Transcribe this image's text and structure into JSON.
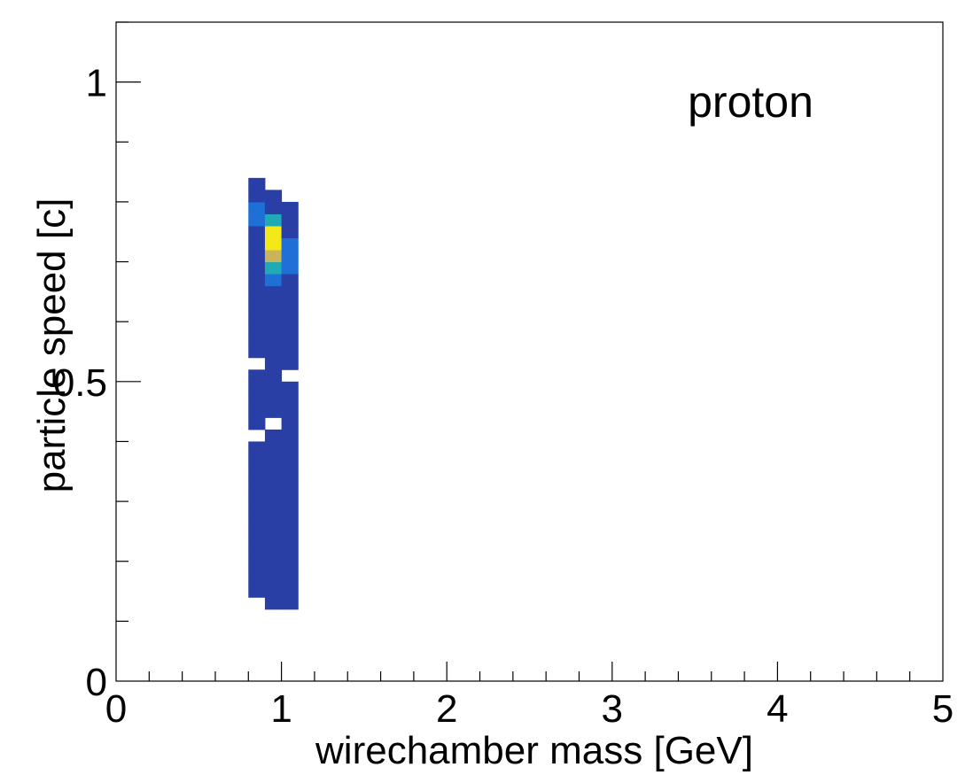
{
  "chart_data": {
    "type": "heatmap",
    "title": "",
    "xlabel": "wirechamber mass [GeV]",
    "ylabel": "particle speed [c]",
    "xlim": [
      0,
      5
    ],
    "ylim": [
      0,
      1.1
    ],
    "x_ticks": [
      "0",
      "1",
      "2",
      "3",
      "4",
      "5"
    ],
    "y_ticks": [
      "0",
      "0.5",
      "1"
    ],
    "annotation": "proton",
    "bin_width_x": 0.1,
    "bin_height_y": 0.02,
    "color_scale": [
      "#2a3fa6",
      "#1e6fd6",
      "#20aab5",
      "#c8b45a",
      "#f5e818"
    ],
    "columns": [
      {
        "x_min": 0.8,
        "x_max": 0.9,
        "y_min": 0.14,
        "y_max": 0.84,
        "gaps": [
          [
            0.52,
            0.54
          ],
          [
            0.4,
            0.42
          ]
        ],
        "hot_bins": [
          {
            "y": 0.76,
            "level": 1
          },
          {
            "y": 0.78,
            "level": 1
          }
        ]
      },
      {
        "x_min": 0.9,
        "x_max": 1.0,
        "y_min": 0.12,
        "y_max": 0.82,
        "gaps": [
          [
            0.42,
            0.44
          ]
        ],
        "hot_bins": [
          {
            "y": 0.66,
            "level": 1
          },
          {
            "y": 0.68,
            "level": 2
          },
          {
            "y": 0.7,
            "level": 3
          },
          {
            "y": 0.72,
            "level": 4
          },
          {
            "y": 0.74,
            "level": 4
          },
          {
            "y": 0.76,
            "level": 2
          }
        ]
      },
      {
        "x_min": 1.0,
        "x_max": 1.1,
        "y_min": 0.12,
        "y_max": 0.8,
        "gaps": [
          [
            0.5,
            0.52
          ]
        ],
        "hot_bins": [
          {
            "y": 0.68,
            "level": 1
          },
          {
            "y": 0.7,
            "level": 1
          },
          {
            "y": 0.72,
            "level": 1
          }
        ]
      }
    ]
  }
}
